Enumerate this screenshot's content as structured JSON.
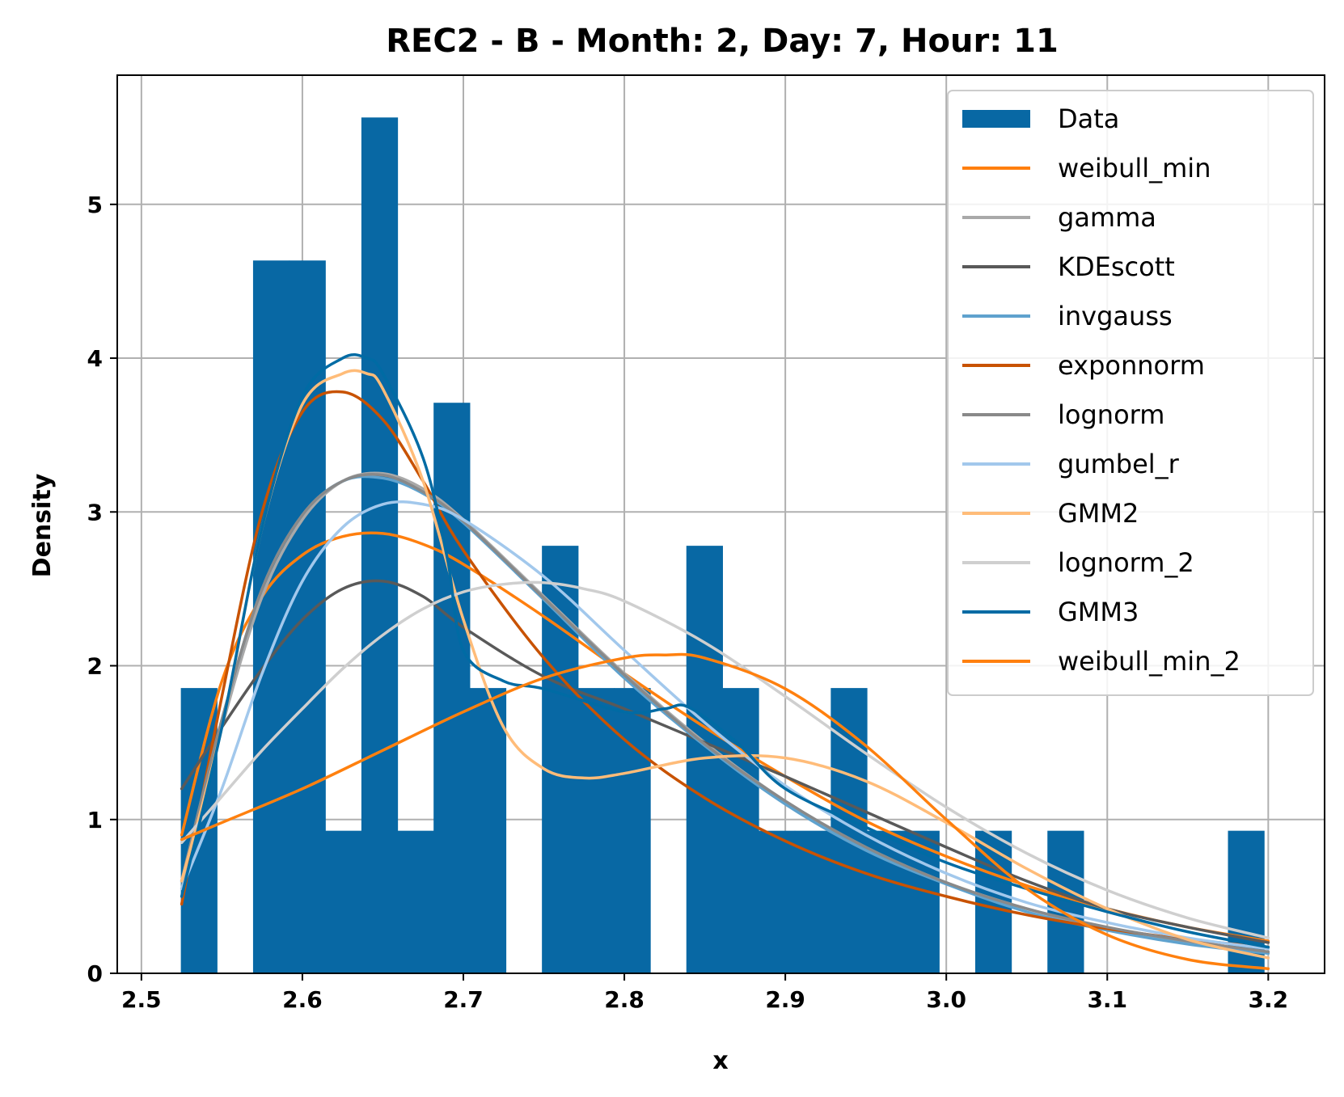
{
  "chart_data": {
    "type": "histogram",
    "title": "REC2 - B - Month: 2, Day: 7, Hour: 11",
    "xlabel": "x",
    "ylabel": "Density",
    "xlim": [
      2.485,
      3.235
    ],
    "ylim": [
      0,
      5.84
    ],
    "xticks": [
      2.5,
      2.6,
      2.7,
      2.8,
      2.9,
      3.0,
      3.1,
      3.2
    ],
    "xtick_labels": [
      "2.5",
      "2.6",
      "2.7",
      "2.8",
      "2.9",
      "3.0",
      "3.1",
      "3.2"
    ],
    "yticks": [
      0,
      1,
      2,
      3,
      4,
      5
    ],
    "ytick_labels": [
      "0",
      "1",
      "2",
      "3",
      "4",
      "5"
    ],
    "grid": true,
    "legend_position": "upper right",
    "histogram": {
      "name": "Data",
      "color": "#0868a4",
      "bin_start": 2.5245,
      "bin_width": 0.02243,
      "values": [
        1.855,
        0,
        4.635,
        4.635,
        0.927,
        5.565,
        0.927,
        3.71,
        1.855,
        0,
        2.78,
        1.855,
        1.855,
        0,
        2.78,
        1.855,
        0.927,
        0.927,
        1.855,
        0.927,
        0.927,
        0,
        0.927,
        0,
        0.927,
        0,
        0,
        0,
        0,
        0.927
      ]
    },
    "series": [
      {
        "name": "weibull_min",
        "color": "#ff7f0e",
        "x": [
          2.525,
          2.55,
          2.575,
          2.6,
          2.625,
          2.65,
          2.675,
          2.7,
          2.75,
          2.8,
          2.85,
          2.9,
          2.95,
          3.0,
          3.05,
          3.1,
          3.15,
          3.2
        ],
        "y": [
          0.9,
          1.9,
          2.45,
          2.72,
          2.84,
          2.86,
          2.79,
          2.66,
          2.32,
          1.95,
          1.6,
          1.28,
          0.99,
          0.76,
          0.57,
          0.42,
          0.3,
          0.21
        ]
      },
      {
        "name": "gamma",
        "color": "#a9a9a9",
        "x": [
          2.525,
          2.55,
          2.575,
          2.6,
          2.625,
          2.65,
          2.675,
          2.7,
          2.75,
          2.8,
          2.85,
          2.9,
          2.95,
          3.0,
          3.05,
          3.1,
          3.15,
          3.2
        ],
        "y": [
          0.55,
          1.6,
          2.45,
          2.95,
          3.2,
          3.25,
          3.15,
          2.95,
          2.45,
          1.95,
          1.5,
          1.12,
          0.82,
          0.59,
          0.42,
          0.29,
          0.2,
          0.13
        ]
      },
      {
        "name": "KDEscott",
        "color": "#595959",
        "x": [
          2.525,
          2.55,
          2.575,
          2.6,
          2.625,
          2.65,
          2.675,
          2.7,
          2.75,
          2.8,
          2.85,
          2.9,
          2.95,
          3.0,
          3.05,
          3.1,
          3.15,
          3.2
        ],
        "y": [
          1.2,
          1.6,
          1.98,
          2.3,
          2.5,
          2.55,
          2.45,
          2.25,
          1.93,
          1.72,
          1.5,
          1.28,
          1.05,
          0.82,
          0.6,
          0.42,
          0.3,
          0.2
        ]
      },
      {
        "name": "invgauss",
        "color": "#5fa2ce",
        "x": [
          2.525,
          2.55,
          2.575,
          2.6,
          2.625,
          2.65,
          2.675,
          2.7,
          2.75,
          2.8,
          2.85,
          2.9,
          2.95,
          3.0,
          3.05,
          3.1,
          3.15,
          3.2
        ],
        "y": [
          0.6,
          1.65,
          2.5,
          2.98,
          3.2,
          3.22,
          3.12,
          2.93,
          2.43,
          1.92,
          1.48,
          1.1,
          0.8,
          0.58,
          0.4,
          0.28,
          0.19,
          0.13
        ]
      },
      {
        "name": "exponnorm",
        "color": "#c85200",
        "x": [
          2.525,
          2.55,
          2.575,
          2.6,
          2.625,
          2.65,
          2.675,
          2.7,
          2.75,
          2.8,
          2.85,
          2.9,
          2.95,
          3.0,
          3.05,
          3.1,
          3.15,
          3.2
        ],
        "y": [
          0.45,
          1.8,
          3.0,
          3.65,
          3.78,
          3.6,
          3.2,
          2.75,
          2.05,
          1.52,
          1.14,
          0.86,
          0.65,
          0.5,
          0.38,
          0.29,
          0.22,
          0.17
        ]
      },
      {
        "name": "lognorm",
        "color": "#898989",
        "x": [
          2.525,
          2.55,
          2.575,
          2.6,
          2.625,
          2.65,
          2.675,
          2.7,
          2.75,
          2.8,
          2.85,
          2.9,
          2.95,
          3.0,
          3.05,
          3.1,
          3.15,
          3.2
        ],
        "y": [
          0.6,
          1.65,
          2.5,
          2.98,
          3.2,
          3.24,
          3.13,
          2.94,
          2.44,
          1.94,
          1.49,
          1.12,
          0.82,
          0.59,
          0.42,
          0.3,
          0.21,
          0.14
        ]
      },
      {
        "name": "gumbel_r",
        "color": "#a2c8ec",
        "x": [
          2.525,
          2.55,
          2.575,
          2.6,
          2.625,
          2.65,
          2.675,
          2.7,
          2.75,
          2.8,
          2.85,
          2.9,
          2.95,
          3.0,
          3.05,
          3.1,
          3.15,
          3.2
        ],
        "y": [
          0.55,
          1.2,
          1.95,
          2.55,
          2.9,
          3.05,
          3.05,
          2.95,
          2.58,
          2.1,
          1.63,
          1.22,
          0.9,
          0.65,
          0.46,
          0.33,
          0.23,
          0.16
        ]
      },
      {
        "name": "GMM2",
        "color": "#ffbc79",
        "x": [
          2.525,
          2.55,
          2.575,
          2.6,
          2.625,
          2.64,
          2.65,
          2.675,
          2.7,
          2.725,
          2.75,
          2.775,
          2.8,
          2.85,
          2.9,
          2.95,
          3.0,
          3.05,
          3.1,
          3.15,
          3.2
        ],
        "y": [
          0.6,
          1.6,
          2.9,
          3.7,
          3.9,
          3.9,
          3.8,
          3.2,
          2.3,
          1.6,
          1.33,
          1.27,
          1.3,
          1.4,
          1.4,
          1.25,
          0.98,
          0.68,
          0.42,
          0.22,
          0.1
        ]
      },
      {
        "name": "lognorm_2",
        "color": "#cfcfcf",
        "x": [
          2.525,
          2.55,
          2.575,
          2.6,
          2.625,
          2.65,
          2.675,
          2.7,
          2.725,
          2.75,
          2.775,
          2.8,
          2.85,
          2.9,
          2.95,
          3.0,
          3.05,
          3.1,
          3.15,
          3.2
        ],
        "y": [
          0.85,
          1.15,
          1.45,
          1.72,
          1.98,
          2.2,
          2.37,
          2.48,
          2.53,
          2.54,
          2.5,
          2.42,
          2.15,
          1.8,
          1.43,
          1.08,
          0.78,
          0.54,
          0.36,
          0.23
        ]
      },
      {
        "name": "GMM3",
        "color": "#006ba4",
        "x": [
          2.525,
          2.55,
          2.575,
          2.6,
          2.625,
          2.64,
          2.65,
          2.675,
          2.69,
          2.7,
          2.725,
          2.75,
          2.8,
          2.825,
          2.84,
          2.87,
          2.9,
          2.95,
          3.0,
          3.05,
          3.1,
          3.15,
          3.2
        ],
        "y": [
          0.5,
          1.6,
          2.9,
          3.75,
          4.0,
          4.0,
          3.9,
          3.35,
          2.7,
          2.1,
          1.9,
          1.85,
          1.7,
          1.72,
          1.73,
          1.5,
          1.2,
          0.95,
          0.72,
          0.55,
          0.4,
          0.27,
          0.17
        ]
      },
      {
        "name": "weibull_min_2",
        "color": "#ff800e",
        "x": [
          2.525,
          2.55,
          2.6,
          2.65,
          2.7,
          2.75,
          2.8,
          2.825,
          2.85,
          2.9,
          2.95,
          3.0,
          3.05,
          3.1,
          3.15,
          3.2
        ],
        "y": [
          0.87,
          0.98,
          1.2,
          1.45,
          1.7,
          1.92,
          2.05,
          2.07,
          2.05,
          1.85,
          1.48,
          1.0,
          0.55,
          0.25,
          0.09,
          0.03
        ]
      }
    ]
  }
}
